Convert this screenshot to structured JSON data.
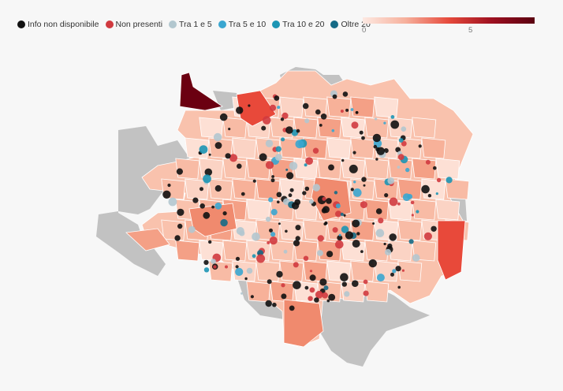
{
  "legend": {
    "items": [
      {
        "label": "Info non disponibile",
        "color": "#111111"
      },
      {
        "label": "Non presenti",
        "color": "#d03a3f"
      },
      {
        "label": "Tra 1 e 5",
        "color": "#b2c7cf"
      },
      {
        "label": "Tra 5 e 10",
        "color": "#3aa6d0"
      },
      {
        "label": "Tra 10 e 20",
        "color": "#1c95b4"
      },
      {
        "label": "Oltre 20",
        "color": "#156a86"
      }
    ]
  },
  "scale": {
    "min_label": "0",
    "mid_label": "5",
    "colors": [
      "#fde9e2",
      "#f6b09c",
      "#e64a3c",
      "#9e1020",
      "#5a0010"
    ]
  },
  "map": {
    "background_color": "#c2c2c2",
    "district_base_color": "#f9c2ad",
    "highlight_colors": {
      "darkest": "#6b0011",
      "dark": "#e8493a",
      "medium": "#f08a6e"
    }
  }
}
